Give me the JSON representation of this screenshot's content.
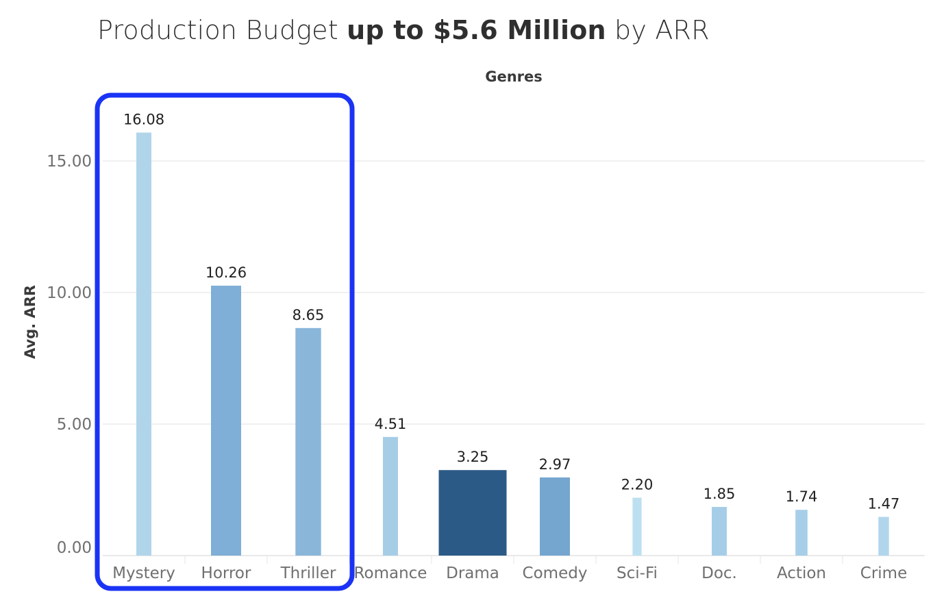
{
  "title": {
    "prefix": "Production Budget ",
    "bold": "up to  $5.6 Million",
    "suffix": " by ARR"
  },
  "chart_data": {
    "type": "bar",
    "title": "Production Budget up to  $5.6 Million by ARR",
    "xlabel": "Genres",
    "ylabel": "Avg. ARR",
    "categories": [
      "Mystery",
      "Horror",
      "Thriller",
      "Romance",
      "Drama",
      "Comedy",
      "Sci-Fi",
      "Doc.",
      "Action",
      "Crime"
    ],
    "values": [
      16.08,
      10.26,
      8.65,
      4.51,
      3.25,
      2.97,
      2.2,
      1.85,
      1.74,
      1.47
    ],
    "value_labels": [
      "16.08",
      "10.26",
      "8.65",
      "4.51",
      "3.25",
      "2.97",
      "2.20",
      "1.85",
      "1.74",
      "1.47"
    ],
    "colors": [
      "#b0d5ea",
      "#7faed6",
      "#8ab6da",
      "#a6cde6",
      "#2c5a86",
      "#75a6cf",
      "#bde0f1",
      "#a6cde7",
      "#a7cee8",
      "#b1d6ec"
    ],
    "bar_width_weights": [
      1,
      2,
      1.7,
      1,
      4.5,
      2,
      0.6,
      1,
      0.8,
      0.7
    ],
    "yticks": [
      0,
      5,
      10,
      15
    ],
    "ytick_labels": [
      "0.00",
      "5.00",
      "10.00",
      "15.00"
    ],
    "ylim": [
      0,
      16.5
    ],
    "grid": true,
    "highlight": {
      "categories": [
        "Mystery",
        "Horror",
        "Thriller"
      ],
      "color": "#1a33f5"
    }
  }
}
